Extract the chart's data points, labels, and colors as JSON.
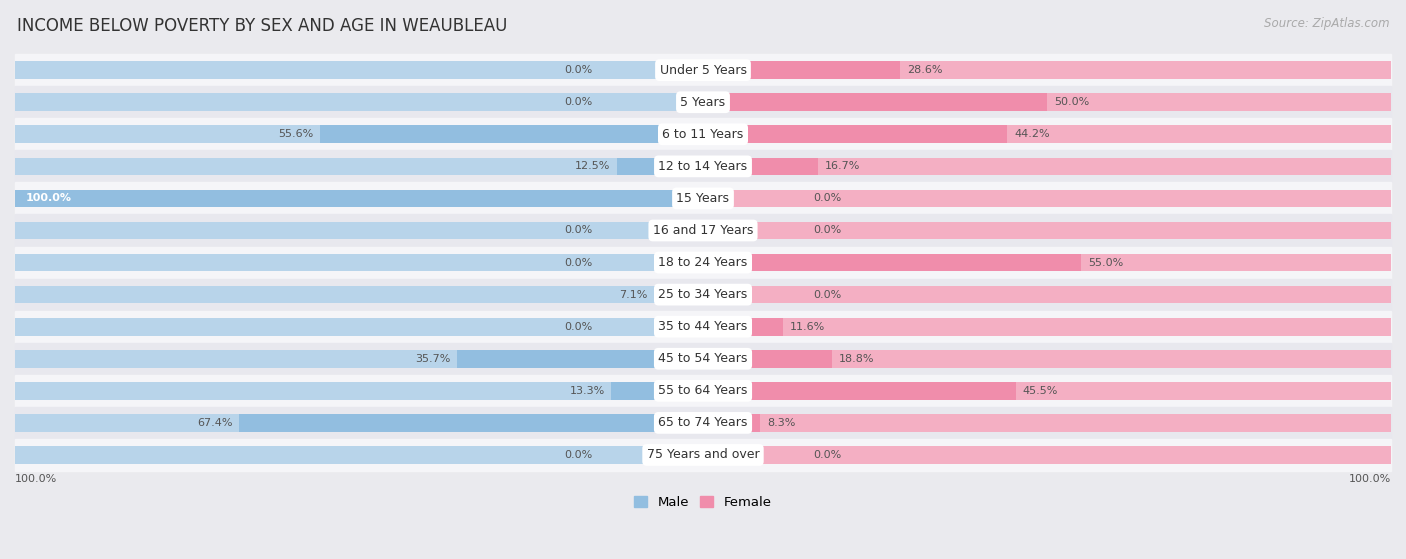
{
  "title": "INCOME BELOW POVERTY BY SEX AND AGE IN WEAUBLEAU",
  "source": "Source: ZipAtlas.com",
  "categories": [
    "Under 5 Years",
    "5 Years",
    "6 to 11 Years",
    "12 to 14 Years",
    "15 Years",
    "16 and 17 Years",
    "18 to 24 Years",
    "25 to 34 Years",
    "35 to 44 Years",
    "45 to 54 Years",
    "55 to 64 Years",
    "65 to 74 Years",
    "75 Years and over"
  ],
  "male": [
    0.0,
    0.0,
    55.6,
    12.5,
    100.0,
    0.0,
    0.0,
    7.1,
    0.0,
    35.7,
    13.3,
    67.4,
    0.0
  ],
  "female": [
    28.6,
    50.0,
    44.2,
    16.7,
    0.0,
    0.0,
    55.0,
    0.0,
    11.6,
    18.8,
    45.5,
    8.3,
    0.0
  ],
  "male_color": "#92bee0",
  "female_color": "#f08dab",
  "male_color_light": "#b8d4ea",
  "female_color_light": "#f4afc3",
  "row_color_odd": "#f5f5f8",
  "row_color_even": "#e8e8ee",
  "fig_bg": "#eaeaee",
  "label_bg": "#ffffff",
  "max_val": 100.0,
  "bar_height": 0.55,
  "label_fontsize": 9.0,
  "value_fontsize": 8.0,
  "title_fontsize": 12,
  "source_fontsize": 8.5
}
